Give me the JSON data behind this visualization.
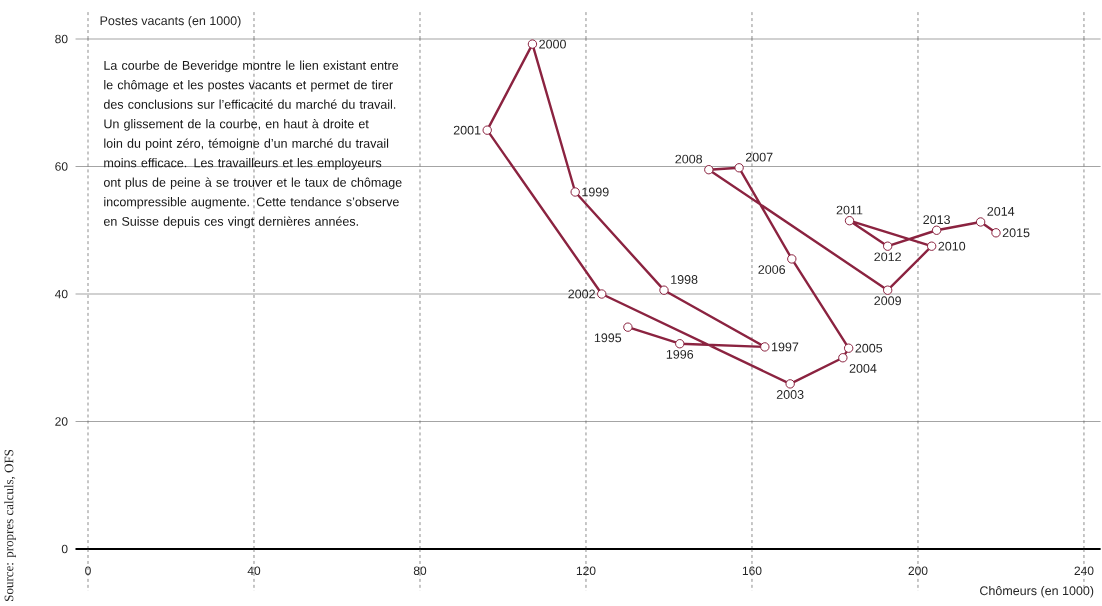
{
  "chart_data": {
    "type": "line",
    "xlabel": "Chômeurs (en 1000)",
    "ylabel": "Postes vacants (en 1000)",
    "xlim": [
      -3,
      244
    ],
    "ylim": [
      0,
      80
    ],
    "xticks": [
      0,
      40,
      80,
      120,
      160,
      200,
      240
    ],
    "yticks": [
      0,
      20,
      40,
      60,
      80
    ],
    "grid": true,
    "marker": "circle",
    "line_style": "solid",
    "series": [
      {
        "color": "#8b2340",
        "x": [
          130.1,
          142.6,
          163.1,
          138.8,
          117.4,
          107.1,
          96.2,
          123.8,
          169.2,
          181.9,
          183.3,
          169.6,
          156.9,
          149.6,
          192.7,
          203.3,
          183.5,
          192.7,
          204.5,
          215.1,
          218.8
        ],
        "values": [
          34.8,
          32.2,
          31.7,
          40.6,
          56.0,
          79.2,
          65.7,
          40.0,
          25.9,
          30.0,
          31.5,
          45.5,
          59.8,
          59.5,
          40.6,
          47.5,
          51.5,
          47.5,
          50.0,
          51.3,
          49.6
        ]
      }
    ],
    "annotations": [
      "La courbe de Beveridge montre le lien existant entre le chômage et les postes vacants et permet de tirer des conclusions sur l’efficacité du marché du travail. Un glissement de la courbe, en haut à droite et loin du point zéro, témoigne d’un marché du travail moins efficace. Les travailleurs et les employeurs ont plus de peine à se trouver et le taux de chômage incompressible augmente. Cette tendance s’observe en Suisse depuis ces vingt dernières années.",
      "Source: propres calculs, OFS",
      {
        "text": "1995",
        "x": 130.1,
        "y": 34.8
      },
      {
        "text": "1996",
        "x": 142.6,
        "y": 32.2
      },
      {
        "text": "1997",
        "x": 163.1,
        "y": 31.7
      },
      {
        "text": "1998",
        "x": 138.8,
        "y": 40.6
      },
      {
        "text": "1999",
        "x": 117.4,
        "y": 56.0
      },
      {
        "text": "2000",
        "x": 107.1,
        "y": 79.2
      },
      {
        "text": "2001",
        "x": 96.2,
        "y": 65.7
      },
      {
        "text": "2002",
        "x": 123.8,
        "y": 40.0
      },
      {
        "text": "2003",
        "x": 169.2,
        "y": 25.9
      },
      {
        "text": "2004",
        "x": 181.9,
        "y": 30.0
      },
      {
        "text": "2005",
        "x": 183.3,
        "y": 31.5
      },
      {
        "text": "2006",
        "x": 169.6,
        "y": 45.5
      },
      {
        "text": "2007",
        "x": 156.9,
        "y": 59.8
      },
      {
        "text": "2008",
        "x": 149.6,
        "y": 59.5
      },
      {
        "text": "2009",
        "x": 192.7,
        "y": 40.6
      },
      {
        "text": "2010",
        "x": 203.3,
        "y": 47.5
      },
      {
        "text": "2011",
        "x": 183.5,
        "y": 51.5
      },
      {
        "text": "2012",
        "x": 192.7,
        "y": 47.5
      },
      {
        "text": "2013",
        "x": 204.5,
        "y": 50.0
      },
      {
        "text": "2014",
        "x": 215.1,
        "y": 51.3
      },
      {
        "text": "2015",
        "x": 218.8,
        "y": 49.6
      }
    ]
  }
}
